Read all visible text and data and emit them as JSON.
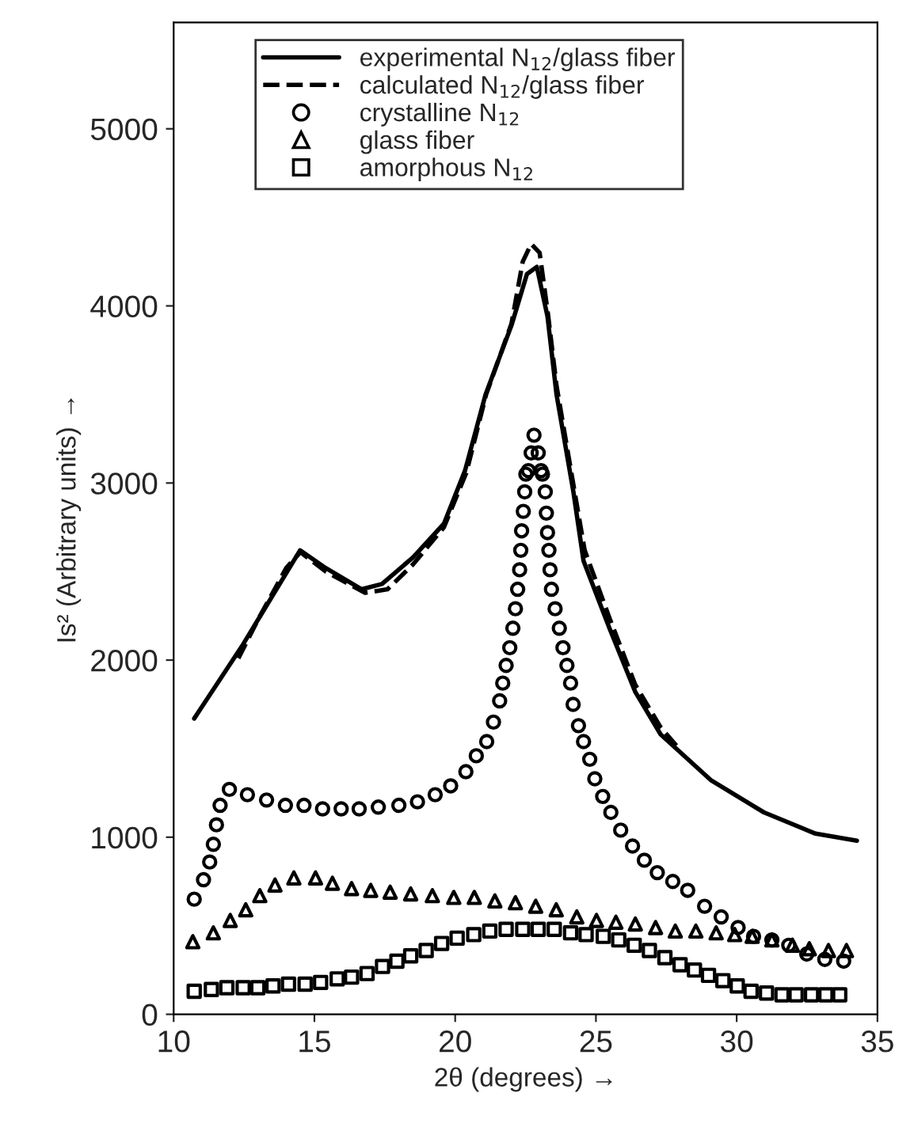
{
  "chart_data": {
    "type": "line",
    "xlabel": "2θ (degrees) →",
    "ylabel": "Is² (Arbitrary units) →",
    "xlim": [
      10,
      35
    ],
    "ylim": [
      0,
      5600
    ],
    "xticks": [
      10,
      15,
      20,
      25,
      30,
      35
    ],
    "yticks": [
      0,
      1000,
      2000,
      3000,
      4000,
      5000
    ],
    "grid": false,
    "legend": "top",
    "series": [
      {
        "name": "experimental N$_{12}$/glass fiber",
        "line_style": "solid",
        "marker": "none",
        "color": "#000000",
        "x": [
          10.73,
          12.47,
          14.49,
          15.4,
          16.68,
          17.4,
          18.5,
          19.6,
          20.35,
          21.08,
          22.0,
          22.55,
          22.9,
          23.28,
          23.6,
          24.2,
          24.56,
          25.48,
          26.4,
          27.3,
          29.1,
          30.97,
          32.8,
          34.27
        ],
        "values": [
          1670,
          2090,
          2620,
          2520,
          2400,
          2430,
          2580,
          2770,
          3070,
          3500,
          3890,
          4180,
          4220,
          3940,
          3500,
          2950,
          2560,
          2180,
          1820,
          1580,
          1320,
          1140,
          1020,
          980
        ]
      },
      {
        "name": "calculated N$_{12}$/glass fiber",
        "line_style": "dashed",
        "marker": "none",
        "color": "#000000",
        "x": [
          12.3,
          13.0,
          14.0,
          14.5,
          15.4,
          16.8,
          17.6,
          18.5,
          19.6,
          20.4,
          21.1,
          22.0,
          22.4,
          22.7,
          23.0,
          23.3,
          23.6,
          24.2,
          24.6,
          25.5,
          26.4,
          27.3,
          27.95
        ],
        "values": [
          2010,
          2230,
          2520,
          2610,
          2500,
          2380,
          2400,
          2540,
          2750,
          3060,
          3500,
          3900,
          4250,
          4350,
          4300,
          3950,
          3550,
          2990,
          2620,
          2230,
          1860,
          1620,
          1500
        ]
      },
      {
        "name": "crystalline N$_{12}$",
        "type": "scatter",
        "marker": "circle",
        "color": "#000000",
        "x": [
          10.73,
          11.06,
          11.28,
          11.41,
          11.52,
          11.65,
          11.98,
          12.62,
          13.3,
          13.97,
          14.63,
          15.29,
          15.95,
          16.59,
          17.27,
          18.0,
          18.66,
          19.29,
          19.84,
          20.38,
          20.75,
          21.12,
          21.36,
          21.58,
          21.69,
          21.81,
          21.94,
          22.05,
          22.14,
          22.22,
          22.29,
          22.33,
          22.36,
          22.42,
          22.47,
          22.51,
          22.6,
          22.7,
          22.8,
          22.95,
          23.05,
          23.1,
          23.2,
          23.24,
          23.28,
          23.33,
          23.37,
          23.42,
          23.55,
          23.7,
          23.83,
          23.97,
          24.1,
          24.19,
          24.38,
          24.56,
          24.78,
          24.96,
          25.24,
          25.53,
          25.88,
          26.3,
          26.72,
          27.18,
          27.73,
          28.26,
          28.86,
          29.45,
          30.05,
          30.6,
          31.25,
          31.85,
          32.49,
          33.13,
          33.8
        ],
        "values": [
          650,
          760,
          860,
          960,
          1070,
          1180,
          1270,
          1240,
          1210,
          1180,
          1180,
          1160,
          1160,
          1160,
          1170,
          1180,
          1200,
          1240,
          1290,
          1370,
          1460,
          1540,
          1650,
          1770,
          1870,
          1970,
          2070,
          2180,
          2290,
          2400,
          2510,
          2620,
          2730,
          2840,
          2950,
          3050,
          3070,
          3170,
          3270,
          3170,
          3070,
          3050,
          2950,
          2830,
          2720,
          2620,
          2510,
          2400,
          2290,
          2180,
          2070,
          1970,
          1870,
          1750,
          1630,
          1540,
          1440,
          1330,
          1230,
          1140,
          1040,
          950,
          870,
          800,
          750,
          700,
          610,
          550,
          490,
          440,
          420,
          390,
          340,
          310,
          300
        ]
      },
      {
        "name": "glass fiber",
        "type": "scatter",
        "marker": "triangle",
        "color": "#000000",
        "x": [
          10.68,
          11.41,
          12.01,
          12.56,
          13.06,
          13.6,
          14.27,
          15.04,
          15.64,
          16.32,
          17.0,
          17.69,
          18.42,
          19.19,
          19.95,
          20.68,
          21.41,
          22.14,
          22.86,
          23.59,
          24.32,
          25.02,
          25.71,
          26.4,
          27.12,
          27.82,
          28.55,
          29.27,
          29.93,
          30.55,
          31.25,
          31.98,
          32.58,
          33.26,
          33.9
        ],
        "values": [
          410,
          460,
          530,
          590,
          670,
          730,
          770,
          770,
          740,
          710,
          700,
          690,
          680,
          670,
          660,
          660,
          640,
          630,
          610,
          590,
          550,
          530,
          520,
          510,
          490,
          470,
          470,
          460,
          450,
          440,
          420,
          390,
          370,
          360,
          360
        ]
      },
      {
        "name": "amorphous N$_{12}$",
        "type": "scatter",
        "marker": "square",
        "color": "#000000",
        "x": [
          10.73,
          11.34,
          11.89,
          12.47,
          12.99,
          13.53,
          14.08,
          14.67,
          15.22,
          15.81,
          16.32,
          16.87,
          17.42,
          17.93,
          18.42,
          18.97,
          19.52,
          20.07,
          20.66,
          21.23,
          21.81,
          22.4,
          22.95,
          23.52,
          24.1,
          24.65,
          25.26,
          25.81,
          26.36,
          26.9,
          27.45,
          27.99,
          28.5,
          29.0,
          29.51,
          30.02,
          30.51,
          31.06,
          31.61,
          32.11,
          32.66,
          33.17,
          33.66
        ],
        "values": [
          130,
          140,
          150,
          150,
          150,
          160,
          170,
          170,
          180,
          200,
          210,
          230,
          270,
          300,
          330,
          360,
          400,
          430,
          450,
          470,
          480,
          480,
          480,
          480,
          460,
          450,
          440,
          420,
          390,
          360,
          320,
          280,
          250,
          220,
          190,
          160,
          130,
          120,
          110,
          110,
          110,
          110,
          110
        ]
      }
    ]
  }
}
